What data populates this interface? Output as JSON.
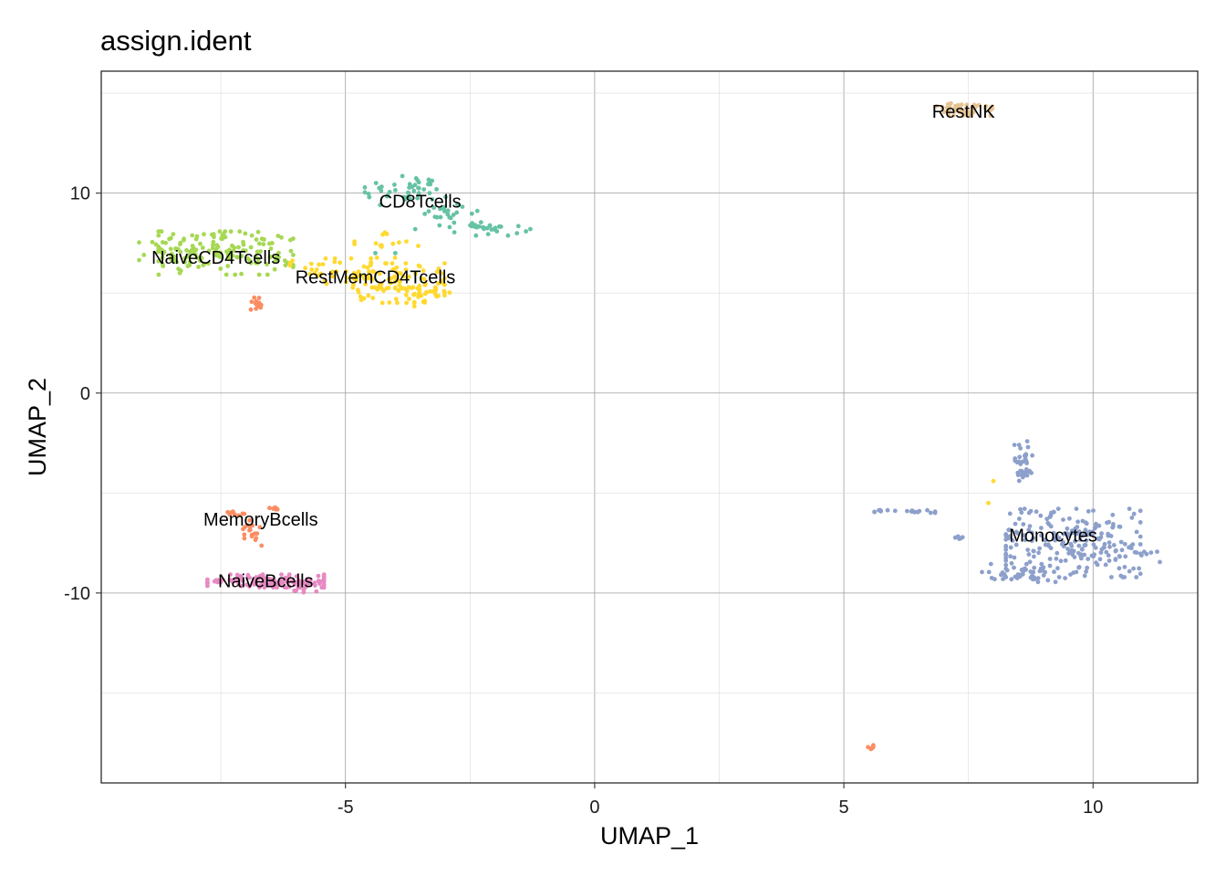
{
  "chart_data": {
    "type": "scatter",
    "title": "assign.ident",
    "xlabel": "UMAP_1",
    "ylabel": "UMAP_2",
    "xlim": [
      -9.9,
      12.1
    ],
    "ylim": [
      -19.5,
      16.1
    ],
    "xticks": [
      -5,
      0,
      5,
      10
    ],
    "yticks": [
      -10,
      0,
      10
    ],
    "xtick_labels": [
      "-5",
      "0",
      "5",
      "10"
    ],
    "ytick_labels": [
      "-10",
      "0",
      "10"
    ],
    "grid": true,
    "legend": "none",
    "point_size": 2.4,
    "clusters": [
      {
        "label": "CD8Tcells",
        "label_pos": [
          -3.5,
          9.6
        ],
        "color": "#66c2a5",
        "blobs": [
          {
            "center": [
              -3.8,
              10.1
            ],
            "spread": [
              0.45,
              0.45
            ],
            "n": 45
          },
          {
            "center": [
              -3.0,
              8.9
            ],
            "spread": [
              0.4,
              0.3
            ],
            "n": 22
          },
          {
            "center": [
              -2.1,
              8.2
            ],
            "spread": [
              0.45,
              0.18
            ],
            "n": 30
          }
        ]
      },
      {
        "label": "NaiveCD4Tcells",
        "label_pos": [
          -7.6,
          6.8
        ],
        "color": "#a6d854",
        "blobs": [
          {
            "center": [
              -7.4,
              7.0
            ],
            "spread": [
              0.75,
              0.6
            ],
            "n": 150
          },
          {
            "center": [
              -8.6,
              7.1
            ],
            "spread": [
              0.3,
              0.25
            ],
            "n": 20
          }
        ]
      },
      {
        "label": "RestMemCD4Tcells",
        "label_pos": [
          -4.4,
          5.8
        ],
        "color": "#ffd92f",
        "blobs": [
          {
            "center": [
              -5.3,
              6.1
            ],
            "spread": [
              0.45,
              0.35
            ],
            "n": 40
          },
          {
            "center": [
              -4.0,
              5.5
            ],
            "spread": [
              0.55,
              0.55
            ],
            "n": 110
          },
          {
            "center": [
              -4.1,
              7.4
            ],
            "spread": [
              0.4,
              0.35
            ],
            "n": 15
          },
          {
            "center": [
              -3.3,
              4.8
            ],
            "spread": [
              0.25,
              0.35
            ],
            "n": 15
          }
        ]
      },
      {
        "label": "RestNK",
        "label_pos": [
          7.4,
          14.1
        ],
        "color": "#e5c494",
        "blobs": [
          {
            "center": [
              7.4,
              14.2
            ],
            "spread": [
              0.32,
              0.18
            ],
            "n": 50
          }
        ]
      },
      {
        "label": "MemoryBcells",
        "label_pos": [
          -6.7,
          -6.3
        ],
        "color": "#fc8d62",
        "blobs": [
          {
            "center": [
              -6.9,
              -7.0
            ],
            "spread": [
              0.12,
              0.35
            ],
            "n": 18
          },
          {
            "center": [
              -7.3,
              -6.0
            ],
            "spread": [
              0.15,
              0.08
            ],
            "n": 8
          },
          {
            "center": [
              -6.4,
              -5.8
            ],
            "spread": [
              0.08,
              0.08
            ],
            "n": 6
          },
          {
            "center": [
              -6.8,
              4.5
            ],
            "spread": [
              0.08,
              0.22
            ],
            "n": 12
          },
          {
            "center": [
              5.55,
              -17.7
            ],
            "spread": [
              0.08,
              0.06
            ],
            "n": 7
          }
        ]
      },
      {
        "label": "NaiveBcells",
        "label_pos": [
          -6.6,
          -9.4
        ],
        "color": "#e78ac3",
        "blobs": [
          {
            "center": [
              -6.6,
              -9.4
            ],
            "spread": [
              0.65,
              0.18
            ],
            "n": 120
          },
          {
            "center": [
              -5.8,
              -9.7
            ],
            "spread": [
              0.18,
              0.15
            ],
            "n": 18
          }
        ]
      },
      {
        "label": "Monocytes",
        "label_pos": [
          9.2,
          -7.1
        ],
        "color": "#8da0cb",
        "blobs": [
          {
            "center": [
              9.6,
              -7.5
            ],
            "spread": [
              0.75,
              0.95
            ],
            "n": 220
          },
          {
            "center": [
              8.6,
              -3.4
            ],
            "spread": [
              0.1,
              0.55
            ],
            "n": 35
          },
          {
            "center": [
              6.2,
              -5.9
            ],
            "spread": [
              0.35,
              0.05
            ],
            "n": 20
          },
          {
            "center": [
              8.8,
              -9.0
            ],
            "spread": [
              0.6,
              0.25
            ],
            "n": 45
          },
          {
            "center": [
              10.9,
              -8.0
            ],
            "spread": [
              0.25,
              0.25
            ],
            "n": 15
          },
          {
            "center": [
              7.3,
              -7.2
            ],
            "spread": [
              0.1,
              0.05
            ],
            "n": 6
          }
        ]
      }
    ],
    "outliers": [
      {
        "x": 8.0,
        "y": -4.4,
        "color": "#ffd92f"
      },
      {
        "x": 7.9,
        "y": -5.5,
        "color": "#ffd92f"
      },
      {
        "x": -4.0,
        "y": 7.0,
        "color": "#66c2a5"
      },
      {
        "x": -4.4,
        "y": 7.0,
        "color": "#66c2a5"
      },
      {
        "x": -3.6,
        "y": 8.2,
        "color": "#66c2a5"
      }
    ]
  }
}
